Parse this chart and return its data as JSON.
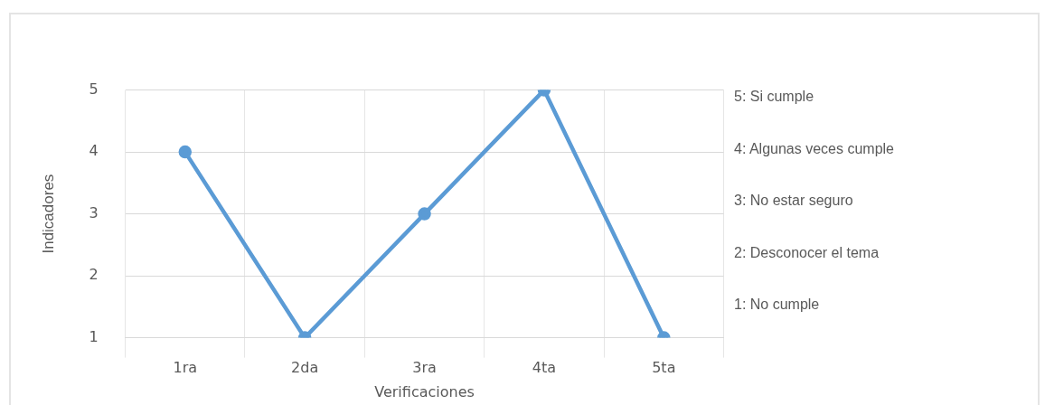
{
  "chart_data": {
    "type": "line",
    "xlabel": "Verificaciones",
    "ylabel": "Indicadores",
    "categories": [
      "1ra",
      "2da",
      "3ra",
      "4ta",
      "5ta"
    ],
    "series": [
      {
        "color": "#5b9bd5",
        "values": [
          4,
          1,
          3,
          5,
          1
        ]
      }
    ],
    "ylim": [
      1,
      5
    ],
    "yticks": [
      1,
      2,
      3,
      4,
      5
    ],
    "grid": true,
    "legend": false,
    "marker": "circle",
    "line_style": "solid",
    "annotations": [
      "5: Si cumple",
      "4: Algunas veces cumple",
      "3: No estar seguro",
      "2: Desconocer el tema",
      "1: No cumple"
    ]
  }
}
